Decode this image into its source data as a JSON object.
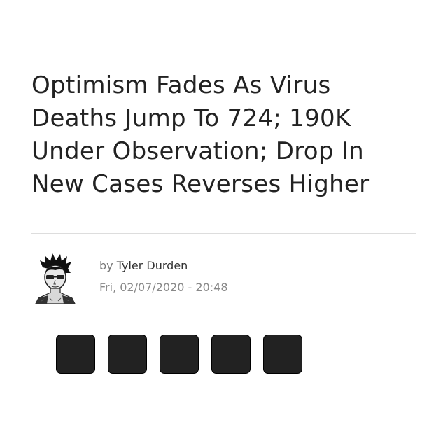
{
  "article": {
    "headline_lines": [
      "Optimism Fades As Virus",
      "Deaths Jump To 724; 190K",
      "Under Observation; Drop In",
      "New Cases Reverses Higher"
    ],
    "byline_prefix": "by",
    "author": "Tyler Durden",
    "date": "Fri, 02/07/2020 - 20:48"
  },
  "share": {
    "buttons": [
      {
        "icon": "share-icon"
      },
      {
        "icon": "share-icon"
      },
      {
        "icon": "share-icon"
      },
      {
        "icon": "share-icon"
      },
      {
        "icon": "share-icon"
      }
    ],
    "button_color": "#222222"
  },
  "colors": {
    "text": "#222222",
    "meta": "#888888",
    "divider": "#dddddd"
  }
}
